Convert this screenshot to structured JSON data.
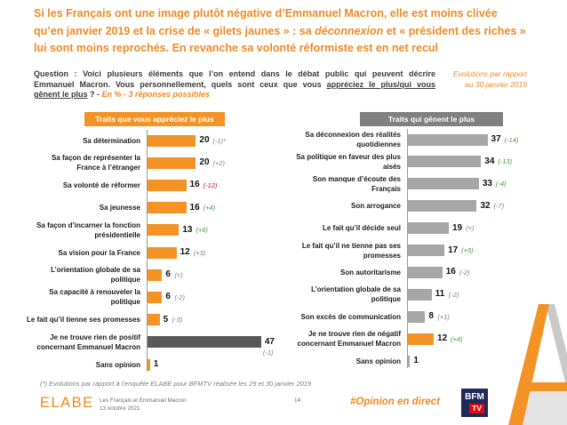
{
  "colors": {
    "accent": "#F08A24"
  },
  "title": {
    "line1": "Si les Français ont une image plutôt négative d’Emmanuel Macron, elle est moins clivée",
    "line2_start": "qu’en janvier 2019 et la crise de « gilets jaunes » : sa ",
    "line2_emphasis": "déconnexion",
    "line2_end": " et « président des riches »",
    "line3": "lui sont moins reprochés. En revanche sa volonté réformiste est en net recul"
  },
  "question": {
    "line1": "Question : Voici plusieurs éléments que l’on entend dans le débat public qui peuvent décrire",
    "line2_start": "Emmanuel Macron. Vous personnellement, quels sont ceux que vous ",
    "line2_underlined": "appréciez le plus/qui vous",
    "line3_underlined": "gênent le plus",
    "line3_middle": " ? - ",
    "line3_note": "En % - 3 réponses possibles"
  },
  "evolution_note": {
    "line1": "Evolutions par rapport",
    "line2": "au 30 janvier 2019"
  },
  "chart_data": [
    {
      "type": "bar",
      "orientation": "horizontal",
      "title": "Traits que vous appréciez le plus",
      "header_color": "#F39325",
      "grid": false,
      "categories": [
        "Sa détermination",
        "Sa façon de représenter la\nFrance à l’étranger",
        "Sa volonté de réformer",
        "Sa jeunesse",
        "Sa façon d’incarner la fonction\nprésidentielle",
        "Sa vision pour la France",
        "L’orientation globale de sa\npolitique",
        "Sa capacité à renouveler la\npolitique",
        "Le fait qu’il tienne ses promesses",
        "Je ne trouve rien de positif\nconcernant Emmanuel Macron",
        "Sans opinion"
      ],
      "values": [
        20,
        20,
        16,
        16,
        13,
        12,
        6,
        6,
        5,
        47,
        1
      ],
      "evolutions": [
        "(-1)*",
        "(+2)",
        "(-12)",
        "(+4)",
        "(+6)",
        "(+3)",
        "(=)",
        "(-2)",
        "(-3)",
        "(-1)",
        null
      ],
      "evolution_colors": [
        "#7F7F7F",
        "#7F7F7F",
        "#E2001A",
        "#3E9B3A",
        "#3E9B3A",
        "#7F7F7F",
        "#7F7F7F",
        "#7F7F7F",
        "#7F7F7F",
        "#7F7F7F",
        null
      ],
      "bar_colors": [
        "#F39325",
        "#F39325",
        "#F39325",
        "#F39325",
        "#F39325",
        "#F39325",
        "#F39325",
        "#F39325",
        "#F39325",
        "#595959",
        "#F39325"
      ]
    },
    {
      "type": "bar",
      "orientation": "horizontal",
      "title": "Traits qui gênent le plus",
      "header_color": "#808080",
      "grid": false,
      "categories": [
        "Sa déconnexion des réalités\nquotidiennes",
        "Sa politique en faveur des plus\naisés",
        "Son manque d’écoute des\nFrançais",
        "Son arrogance",
        "Le fait qu’il décide seul",
        "Le fait qu’il ne tienne pas ses\npromesses",
        "Son autoritarisme",
        "L’orientation globale de sa\npolitique",
        "Son excès de communication",
        "Je ne trouve rien de négatif\nconcernant Emmanuel Macron",
        "Sans opinion"
      ],
      "values": [
        37,
        34,
        33,
        32,
        19,
        17,
        16,
        11,
        8,
        12,
        1
      ],
      "evolutions": [
        "(-14)",
        "(-13)",
        "(-4)",
        "(-7)",
        "(=)",
        "(+5)",
        "(-2)",
        "(-2)",
        "(+1)",
        "(+4)",
        null
      ],
      "evolution_colors": [
        "#3E9B3A",
        "#3E9B3A",
        "#3E9B3A",
        "#3E9B3A",
        "#7F7F7F",
        "#3E9B3A",
        "#7F7F7F",
        "#7F7F7F",
        "#7F7F7F",
        "#3E9B3A",
        null
      ],
      "bar_colors": [
        "#A6A6A6",
        "#A6A6A6",
        "#A6A6A6",
        "#A6A6A6",
        "#A6A6A6",
        "#A6A6A6",
        "#A6A6A6",
        "#A6A6A6",
        "#A6A6A6",
        "#F39325",
        "#A6A6A6"
      ]
    }
  ],
  "footnote": "(*) Evolutions par rapport à l’enquête ELABE pour BFMTV réalisée les 29 et 30 janvier 2019",
  "footer": {
    "logo": "ELABE",
    "study_title": "Les Français et Emmanuel Macron",
    "date": "13 octobre 2021",
    "page_number": "14",
    "hashtag": "#Opinion en direct",
    "partner_logo_top": "BFM",
    "partner_logo_bottom": "TV"
  }
}
